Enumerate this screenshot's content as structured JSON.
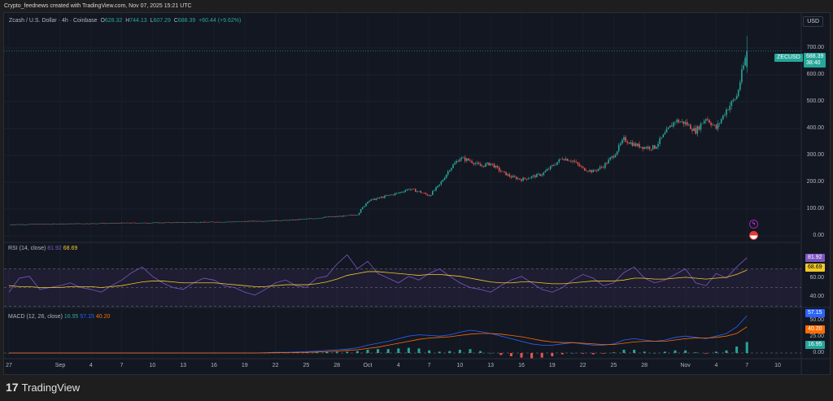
{
  "credit": "Crypto_feednews created with TradingView.com, Nov 07, 2025 15:21 UTC",
  "legend": {
    "symbol": "Zcash / U.S. Dollar · 4h · Coinbase",
    "o_label": "O",
    "o": "628.32",
    "h_label": "H",
    "h": "744.13",
    "l_label": "L",
    "l": "607.29",
    "c_label": "C",
    "c": "688.39",
    "change": "+60.44 (+9.62%)"
  },
  "currency_button": "USD",
  "price_tag": {
    "ticker": "ZECUSD",
    "price": "688.39",
    "countdown": "38:40"
  },
  "colors": {
    "up": "#26a69a",
    "down": "#ef5350",
    "rsi": "#7e57c2",
    "rsi_ma": "#f0c929",
    "macd": "#2962ff",
    "signal": "#ff6d00"
  },
  "brand": "TradingView",
  "chart_data": [
    {
      "type": "candlestick",
      "timeframe": "4h",
      "x_ticks": [
        "27",
        "Sep",
        "4",
        "7",
        "10",
        "13",
        "16",
        "19",
        "22",
        "25",
        "28",
        "Oct",
        "4",
        "7",
        "10",
        "13",
        "16",
        "19",
        "22",
        "25",
        "28",
        "Nov",
        "4",
        "7",
        "10"
      ],
      "y_ticks": [
        "0.00",
        "100.00",
        "200.00",
        "300.00",
        "400.00",
        "500.00",
        "600.00",
        "700.00"
      ],
      "ylim": [
        -10,
        760
      ],
      "daily_close_approx": [
        42,
        43,
        43,
        44,
        44,
        45,
        45,
        46,
        46,
        47,
        47,
        48,
        48,
        48,
        49,
        49,
        50,
        50,
        51,
        51,
        52,
        52,
        53,
        54,
        55,
        56,
        57,
        58,
        60,
        63,
        66,
        70,
        72,
        75,
        80,
        130,
        140,
        150,
        160,
        175,
        165,
        150,
        190,
        250,
        290,
        280,
        260,
        270,
        240,
        220,
        210,
        220,
        230,
        260,
        290,
        280,
        250,
        240,
        260,
        300,
        360,
        340,
        330,
        330,
        380,
        430,
        420,
        390,
        440,
        400,
        470,
        520,
        688
      ],
      "last": {
        "open": 628.32,
        "high": 744.13,
        "low": 607.29,
        "close": 688.39
      }
    },
    {
      "type": "line",
      "title": "RSI (14, close)",
      "values_label": [
        "81.92",
        "68.69"
      ],
      "y_ticks": [
        "40.00",
        "60.00"
      ],
      "bands": [
        30,
        70
      ],
      "ylim": [
        25,
        90
      ],
      "rsi": [
        45,
        60,
        62,
        48,
        50,
        52,
        55,
        50,
        48,
        45,
        52,
        58,
        66,
        72,
        62,
        55,
        50,
        48,
        55,
        60,
        58,
        52,
        50,
        45,
        42,
        48,
        55,
        58,
        52,
        50,
        60,
        62,
        75,
        85,
        70,
        78,
        65,
        60,
        55,
        62,
        58,
        65,
        70,
        62,
        55,
        50,
        48,
        45,
        52,
        58,
        62,
        55,
        48,
        45,
        50,
        58,
        64,
        60,
        52,
        55,
        66,
        72,
        60,
        55,
        58,
        64,
        70,
        55,
        52,
        65,
        60,
        72,
        81.92
      ],
      "ma": [
        52,
        51,
        51,
        50,
        50,
        50,
        51,
        51,
        51,
        50,
        51,
        52,
        54,
        56,
        57,
        57,
        56,
        55,
        55,
        55,
        55,
        54,
        53,
        52,
        51,
        51,
        52,
        53,
        53,
        53,
        54,
        56,
        59,
        63,
        65,
        67,
        67,
        66,
        65,
        64,
        63,
        64,
        64,
        63,
        62,
        60,
        58,
        56,
        55,
        55,
        56,
        56,
        55,
        54,
        54,
        55,
        56,
        57,
        57,
        57,
        58,
        60,
        60,
        59,
        59,
        60,
        61,
        60,
        59,
        60,
        61,
        64,
        68.69
      ]
    },
    {
      "type": "line+histogram",
      "title": "MACD (12, 26, close)",
      "values_label": [
        "16.95",
        "57.15",
        "40.20"
      ],
      "y_ticks": [
        "0.00",
        "25.00",
        "50.00"
      ],
      "ylim": [
        -10,
        75
      ],
      "macd": [
        0,
        0,
        0,
        0,
        0,
        0,
        0,
        0,
        0,
        0,
        0,
        0,
        0,
        0,
        0,
        0,
        0,
        0,
        0,
        0,
        0,
        0,
        0,
        0,
        0,
        0.5,
        1,
        1,
        1.5,
        2,
        3,
        4,
        5,
        6,
        8,
        12,
        15,
        18,
        22,
        26,
        28,
        27,
        26,
        28,
        32,
        35,
        33,
        30,
        26,
        22,
        18,
        14,
        12,
        12,
        14,
        16,
        14,
        12,
        12,
        14,
        20,
        22,
        20,
        18,
        20,
        24,
        26,
        24,
        22,
        26,
        30,
        40,
        57.15
      ],
      "signal": [
        0,
        0,
        0,
        0,
        0,
        0,
        0,
        0,
        0,
        0,
        0,
        0,
        0,
        0,
        0,
        0,
        0,
        0,
        0,
        0,
        0,
        0,
        0,
        0,
        0,
        0.2,
        0.4,
        0.6,
        0.8,
        1,
        1.5,
        2,
        3,
        4,
        5,
        7,
        9,
        12,
        15,
        18,
        21,
        23,
        24,
        25,
        27,
        29,
        30,
        30,
        29,
        27,
        25,
        22,
        19,
        17,
        16,
        16,
        15,
        14,
        13,
        13,
        15,
        17,
        18,
        18,
        18,
        20,
        22,
        23,
        23,
        24,
        26,
        30,
        40.2
      ],
      "histogram_last": 16.95
    }
  ]
}
